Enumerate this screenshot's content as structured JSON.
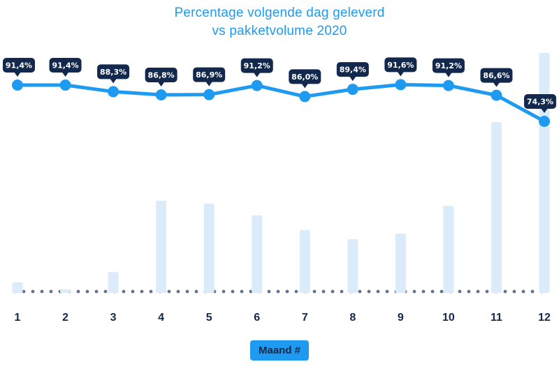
{
  "title": {
    "line1": "Percentage volgende dag geleverd",
    "line2": "vs pakketvolume 2020"
  },
  "footer": {
    "xaxis_label": "Maand #"
  },
  "colors": {
    "accent": "#1E9BF0",
    "navy": "#12294D",
    "bar_fill": "#DCEBFA",
    "dot_gray": "#64748B",
    "badge_text": "#FFFFFF"
  },
  "chart_data": {
    "type": "line",
    "title": "Percentage volgende dag geleverd vs pakketvolume 2020",
    "xlabel": "Maand #",
    "ylabel": "",
    "categories": [
      "1",
      "2",
      "3",
      "4",
      "5",
      "6",
      "7",
      "8",
      "9",
      "10",
      "11",
      "12"
    ],
    "series": [
      {
        "name": "percentage-volgende-dag-geleverd",
        "type": "line",
        "unit": "%",
        "values": [
          91.4,
          91.4,
          88.3,
          86.8,
          86.9,
          91.2,
          86.0,
          89.4,
          91.6,
          91.2,
          86.6,
          74.3
        ],
        "labels": [
          "91,4%",
          "91,4%",
          "88,3%",
          "86,8%",
          "86,9%",
          "91,2%",
          "86,0%",
          "89,4%",
          "91,6%",
          "91,2%",
          "86,6%",
          "74,3%"
        ]
      },
      {
        "name": "pakketvolume-2020",
        "type": "bar",
        "unit": "relative-volume",
        "values": [
          4.4,
          1.5,
          8.7,
          38.4,
          37.2,
          32.3,
          26.2,
          22.4,
          24.7,
          36.3,
          71.2,
          100
        ]
      }
    ],
    "legend": "none",
    "grid": "off",
    "baseline_style": "dotted"
  }
}
